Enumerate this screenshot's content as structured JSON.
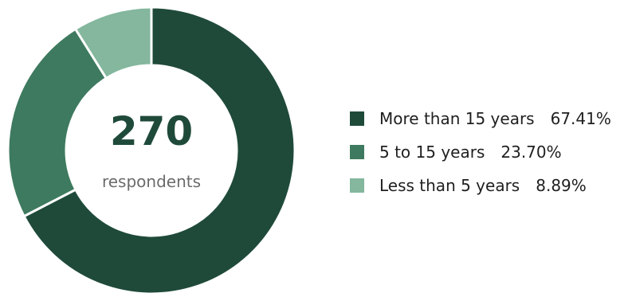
{
  "chart_data": {
    "type": "pie",
    "variant": "donut",
    "center_value": "270",
    "center_label": "respondents",
    "categories": [
      "More than 15 years",
      "5 to 15 years",
      "Less than 5 years"
    ],
    "values": [
      67.41,
      23.7,
      8.89
    ],
    "value_labels": [
      "67.41%",
      "23.70%",
      "8.89%"
    ],
    "colors": [
      "#1f4a3a",
      "#3e7a5f",
      "#84b79d"
    ],
    "legend_position": "right"
  }
}
